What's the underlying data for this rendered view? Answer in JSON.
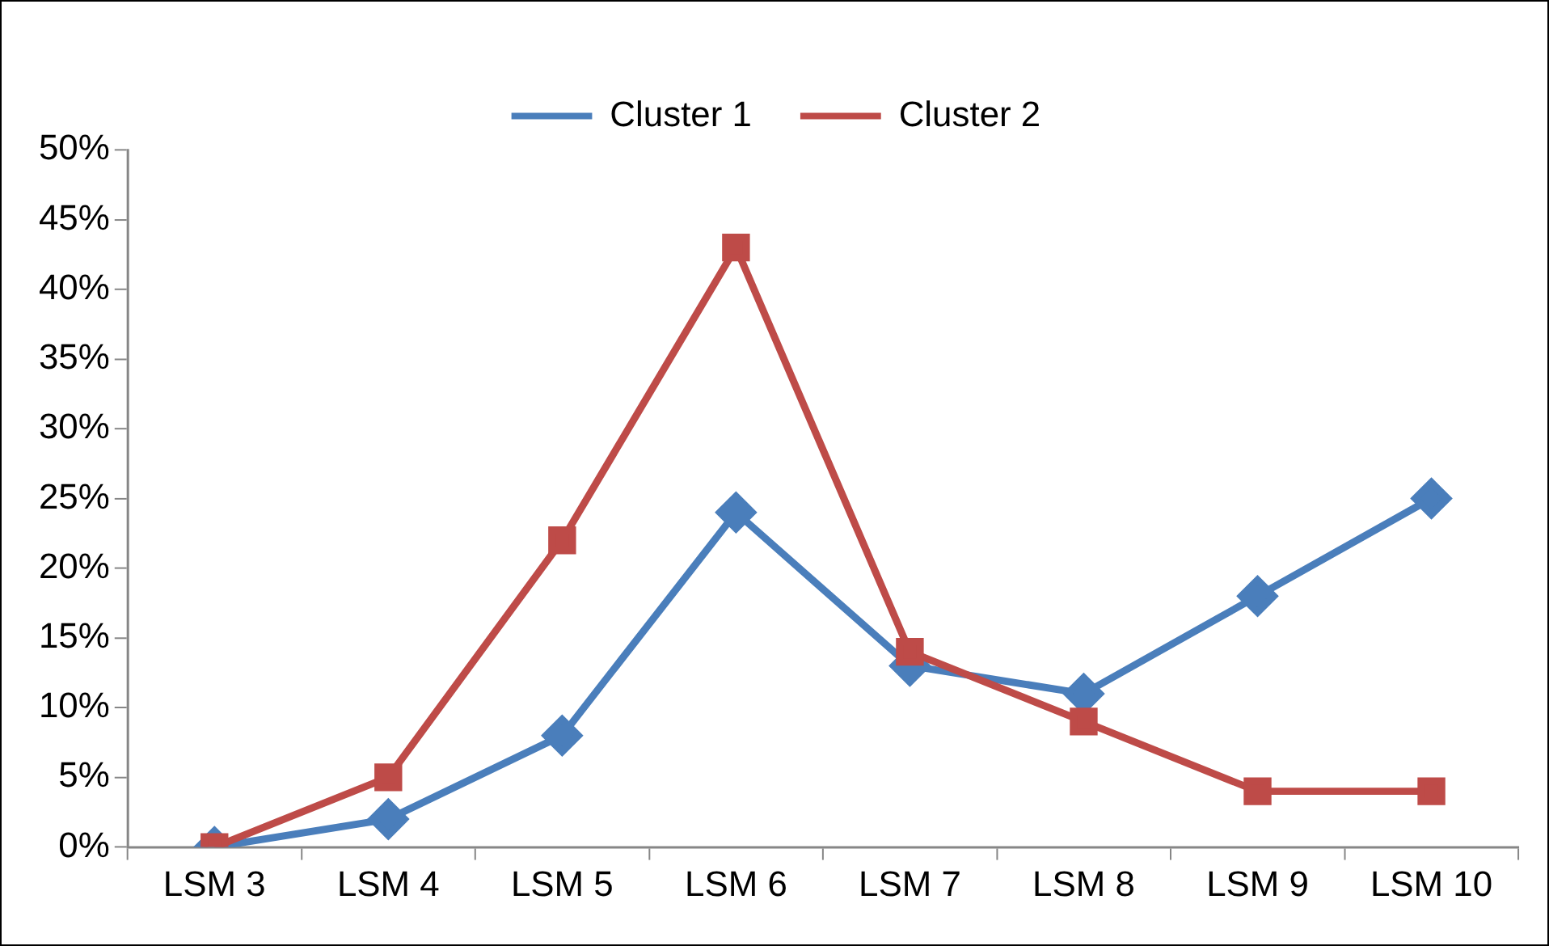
{
  "chart_data": {
    "type": "line",
    "categories": [
      "LSM 3",
      "LSM 4",
      "LSM 5",
      "LSM 6",
      "LSM 7",
      "LSM 8",
      "LSM 9",
      "LSM 10"
    ],
    "series": [
      {
        "name": "Cluster 1",
        "color": "#4a7ebb",
        "marker": "diamond",
        "values": [
          0,
          2,
          8,
          24,
          13,
          11,
          18,
          25
        ]
      },
      {
        "name": "Cluster 2",
        "color": "#be4b48",
        "marker": "square",
        "values": [
          0,
          5,
          22,
          43,
          14,
          9,
          4,
          4
        ]
      }
    ],
    "ylim": [
      0,
      50
    ],
    "yticks": [
      {
        "value": 0,
        "label": "0%"
      },
      {
        "value": 5,
        "label": "5%"
      },
      {
        "value": 10,
        "label": "10%"
      },
      {
        "value": 15,
        "label": "15%"
      },
      {
        "value": 20,
        "label": "20%"
      },
      {
        "value": 25,
        "label": "25%"
      },
      {
        "value": 30,
        "label": "30%"
      },
      {
        "value": 35,
        "label": "35%"
      },
      {
        "value": 40,
        "label": "40%"
      },
      {
        "value": 45,
        "label": "45%"
      },
      {
        "value": 50,
        "label": "50%"
      }
    ],
    "grid": false,
    "legend": "top",
    "line_style": "solid"
  }
}
